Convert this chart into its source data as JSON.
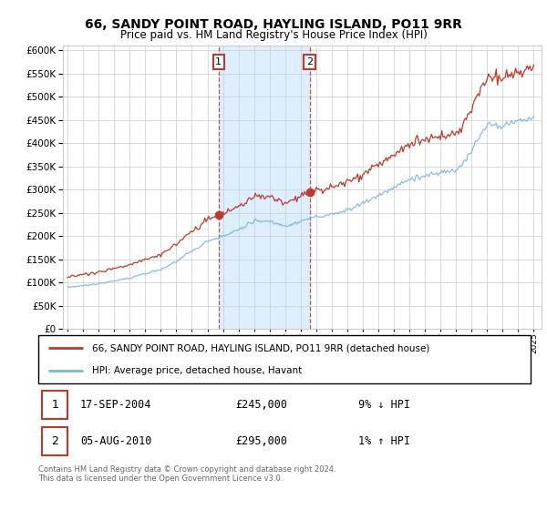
{
  "title": "66, SANDY POINT ROAD, HAYLING ISLAND, PO11 9RR",
  "subtitle": "Price paid vs. HM Land Registry's House Price Index (HPI)",
  "ytick_values": [
    0,
    50000,
    100000,
    150000,
    200000,
    250000,
    300000,
    350000,
    400000,
    450000,
    500000,
    550000,
    600000
  ],
  "ylim": [
    0,
    610000
  ],
  "xlim_start": 1994.7,
  "xlim_end": 2025.5,
  "sale1_x": 2004.72,
  "sale1_y": 245000,
  "sale2_x": 2010.58,
  "sale2_y": 295000,
  "legend_line1": "66, SANDY POINT ROAD, HAYLING ISLAND, PO11 9RR (detached house)",
  "legend_line2": "HPI: Average price, detached house, Havant",
  "table_row1_num": "1",
  "table_row1_date": "17-SEP-2004",
  "table_row1_price": "£245,000",
  "table_row1_hpi": "9% ↓ HPI",
  "table_row2_num": "2",
  "table_row2_date": "05-AUG-2010",
  "table_row2_price": "£295,000",
  "table_row2_hpi": "1% ↑ HPI",
  "footer": "Contains HM Land Registry data © Crown copyright and database right 2024.\nThis data is licensed under the Open Government Licence v3.0.",
  "hpi_color": "#7ab8d9",
  "price_color": "#c0392b",
  "shade_color": "#ddeeff",
  "grid_color": "#cccccc",
  "background_color": "#ffffff"
}
